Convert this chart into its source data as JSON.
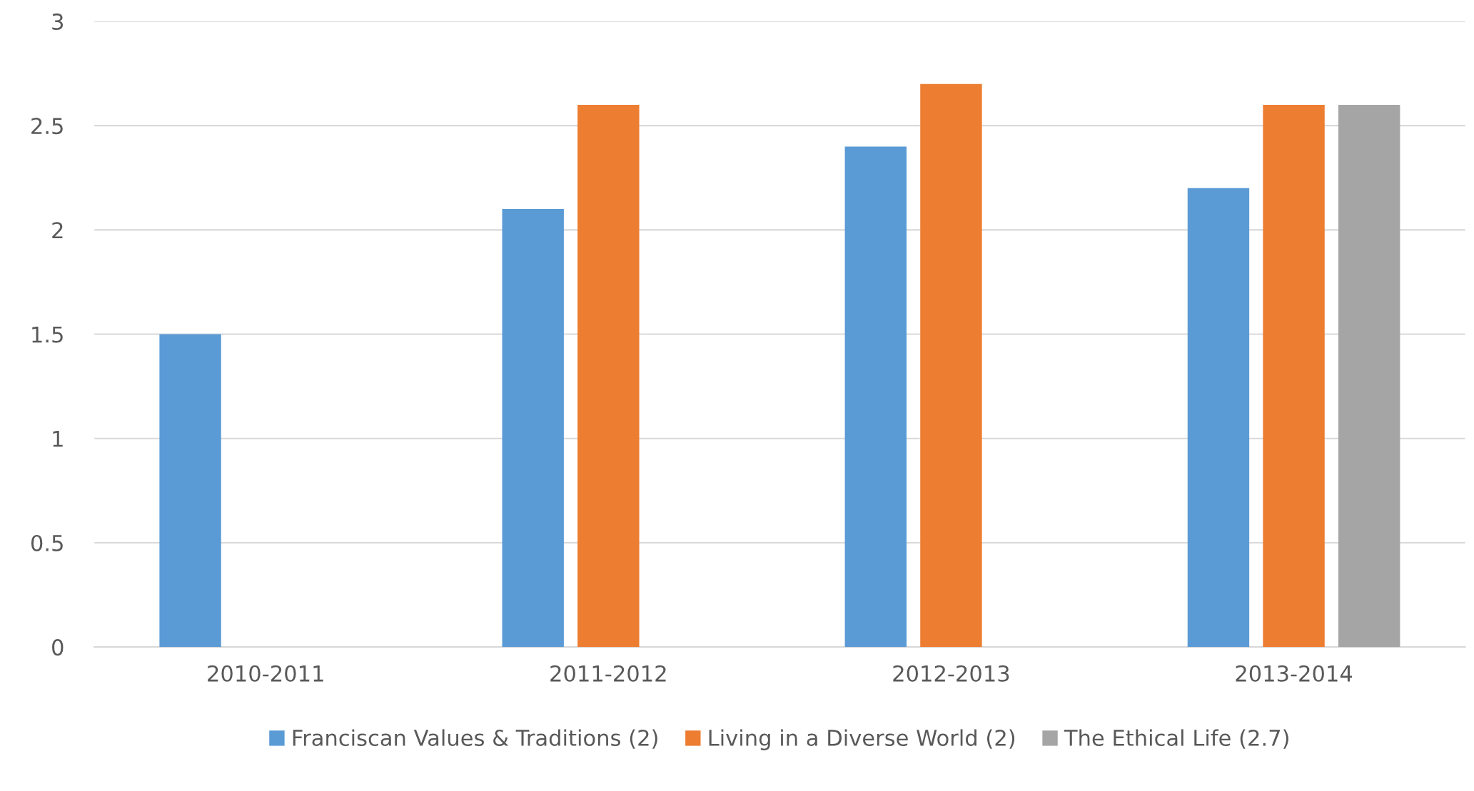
{
  "chart_data": {
    "type": "bar",
    "categories": [
      "2010-2011",
      "2011-2012",
      "2012-2013",
      "2013-2014"
    ],
    "series": [
      {
        "name": "Franciscan Values & Traditions (2)",
        "color": "#5b9bd5",
        "values": [
          1.5,
          2.1,
          2.4,
          2.2
        ]
      },
      {
        "name": "Living in a Diverse World (2)",
        "color": "#ed7d31",
        "values": [
          null,
          2.6,
          2.7,
          2.6
        ]
      },
      {
        "name": "The Ethical Life (2.7)",
        "color": "#a5a5a5",
        "values": [
          null,
          null,
          null,
          2.6
        ]
      }
    ],
    "ylim": [
      0,
      3
    ],
    "yticks": [
      0,
      0.5,
      1,
      1.5,
      2,
      2.5,
      3
    ],
    "grid": "y",
    "legend": "bottom"
  }
}
